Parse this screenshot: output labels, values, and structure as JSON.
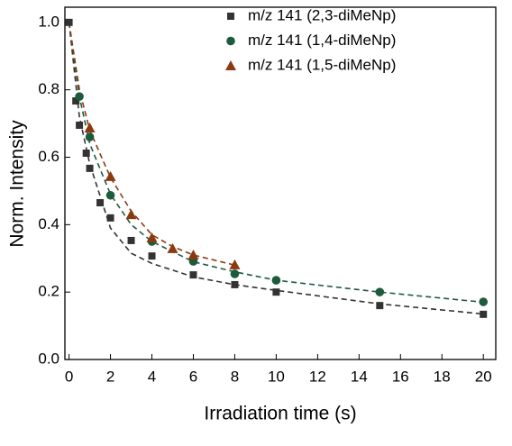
{
  "chart_data": {
    "type": "scatter",
    "x_label": "Irradiation time (s)",
    "y_label": "Norm. Intensity",
    "xlim": [
      -0.2,
      20.6
    ],
    "ylim": [
      0,
      1.045
    ],
    "xticks": [
      0,
      2,
      4,
      6,
      8,
      10,
      12,
      14,
      16,
      18,
      20
    ],
    "yticks": [
      {
        "value": 0,
        "label": "0.0"
      },
      0.2,
      0.4,
      0.6,
      0.8,
      {
        "value": 1,
        "label": "1.0"
      }
    ],
    "legend": "top-right",
    "series": [
      {
        "name": "m/z 141 (2,3-diMeNp)",
        "color": "#333333",
        "marker": "square",
        "x": [
          0,
          0.33,
          0.5,
          0.83,
          1,
          1.5,
          2,
          3,
          4,
          6,
          8,
          10,
          15,
          20
        ],
        "values": [
          1.0,
          0.767,
          0.695,
          0.612,
          0.567,
          0.465,
          0.42,
          0.353,
          0.307,
          0.251,
          0.222,
          0.2,
          0.16,
          0.134
        ],
        "fit": {
          "x": [
            0,
            0.5,
            1,
            2,
            3,
            4,
            6,
            8,
            10,
            15,
            20
          ],
          "values": [
            1.0,
            0.72,
            0.58,
            0.39,
            0.315,
            0.285,
            0.245,
            0.222,
            0.205,
            0.165,
            0.135
          ]
        }
      },
      {
        "name": "m/z 141 (1,4-diMeNp)",
        "color": "#1e5a3c",
        "marker": "circle",
        "x": [
          0.5,
          1,
          2,
          4,
          6,
          8,
          10,
          15,
          20
        ],
        "values": [
          0.78,
          0.66,
          0.487,
          0.35,
          0.291,
          0.254,
          0.235,
          0.2,
          0.171
        ],
        "fit": {
          "x": [
            0,
            0.5,
            1,
            2,
            3,
            4,
            6,
            8,
            10,
            15,
            20
          ],
          "values": [
            1.0,
            0.78,
            0.64,
            0.49,
            0.4,
            0.35,
            0.29,
            0.26,
            0.235,
            0.2,
            0.17
          ]
        }
      },
      {
        "name": "m/z 141 (1,5-diMeNp)",
        "color": "#8b3a0f",
        "marker": "triangle",
        "x": [
          1,
          2,
          3,
          4,
          5,
          6,
          8
        ],
        "values": [
          0.687,
          0.543,
          0.43,
          0.361,
          0.329,
          0.31,
          0.281
        ],
        "fit": {
          "x": [
            0,
            0.5,
            1,
            2,
            3,
            4,
            5,
            6,
            8
          ],
          "values": [
            1.0,
            0.8,
            0.68,
            0.54,
            0.44,
            0.37,
            0.335,
            0.31,
            0.28
          ]
        }
      }
    ]
  }
}
